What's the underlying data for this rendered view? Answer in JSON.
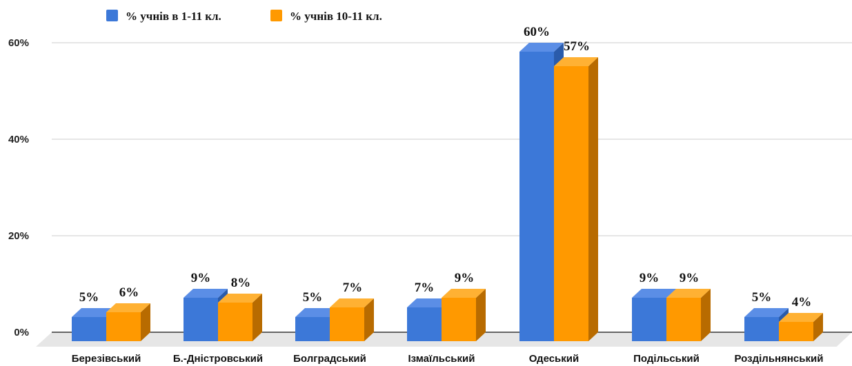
{
  "chart_data": {
    "type": "bar",
    "categories": [
      "Березівський",
      "Б.-Дністровський",
      "Болградський",
      "Ізмаїльський",
      "Одеський",
      "Подільський",
      "Роздільнянський"
    ],
    "series": [
      {
        "name": "% учнів в 1-11 кл.",
        "values": [
          5,
          9,
          5,
          7,
          60,
          9,
          5
        ],
        "labels": [
          "5%",
          "9%",
          "5%",
          "7%",
          "60%",
          "9%",
          "5%"
        ],
        "color": "#3c78d8",
        "top_color": "#5b8ee6",
        "side_color": "#2a5bab"
      },
      {
        "name": "% учнів 10-11 кл.",
        "values": [
          6,
          8,
          7,
          9,
          57,
          9,
          4
        ],
        "labels": [
          "6%",
          "8%",
          "7%",
          "9%",
          "57%",
          "9%",
          "4%"
        ],
        "color": "#ff9900",
        "top_color": "#ffb133",
        "side_color": "#b86b00"
      }
    ],
    "y_ticks": [
      "0%",
      "20%",
      "40%",
      "60%"
    ],
    "y_tick_values": [
      0,
      20,
      40,
      60
    ],
    "ylim": [
      0,
      60
    ],
    "grid": true,
    "legend": "top-left",
    "three_d": true,
    "floor_color": "#e6e6e6",
    "grid_color": "#cccccc",
    "baseline_color": "#111111"
  }
}
